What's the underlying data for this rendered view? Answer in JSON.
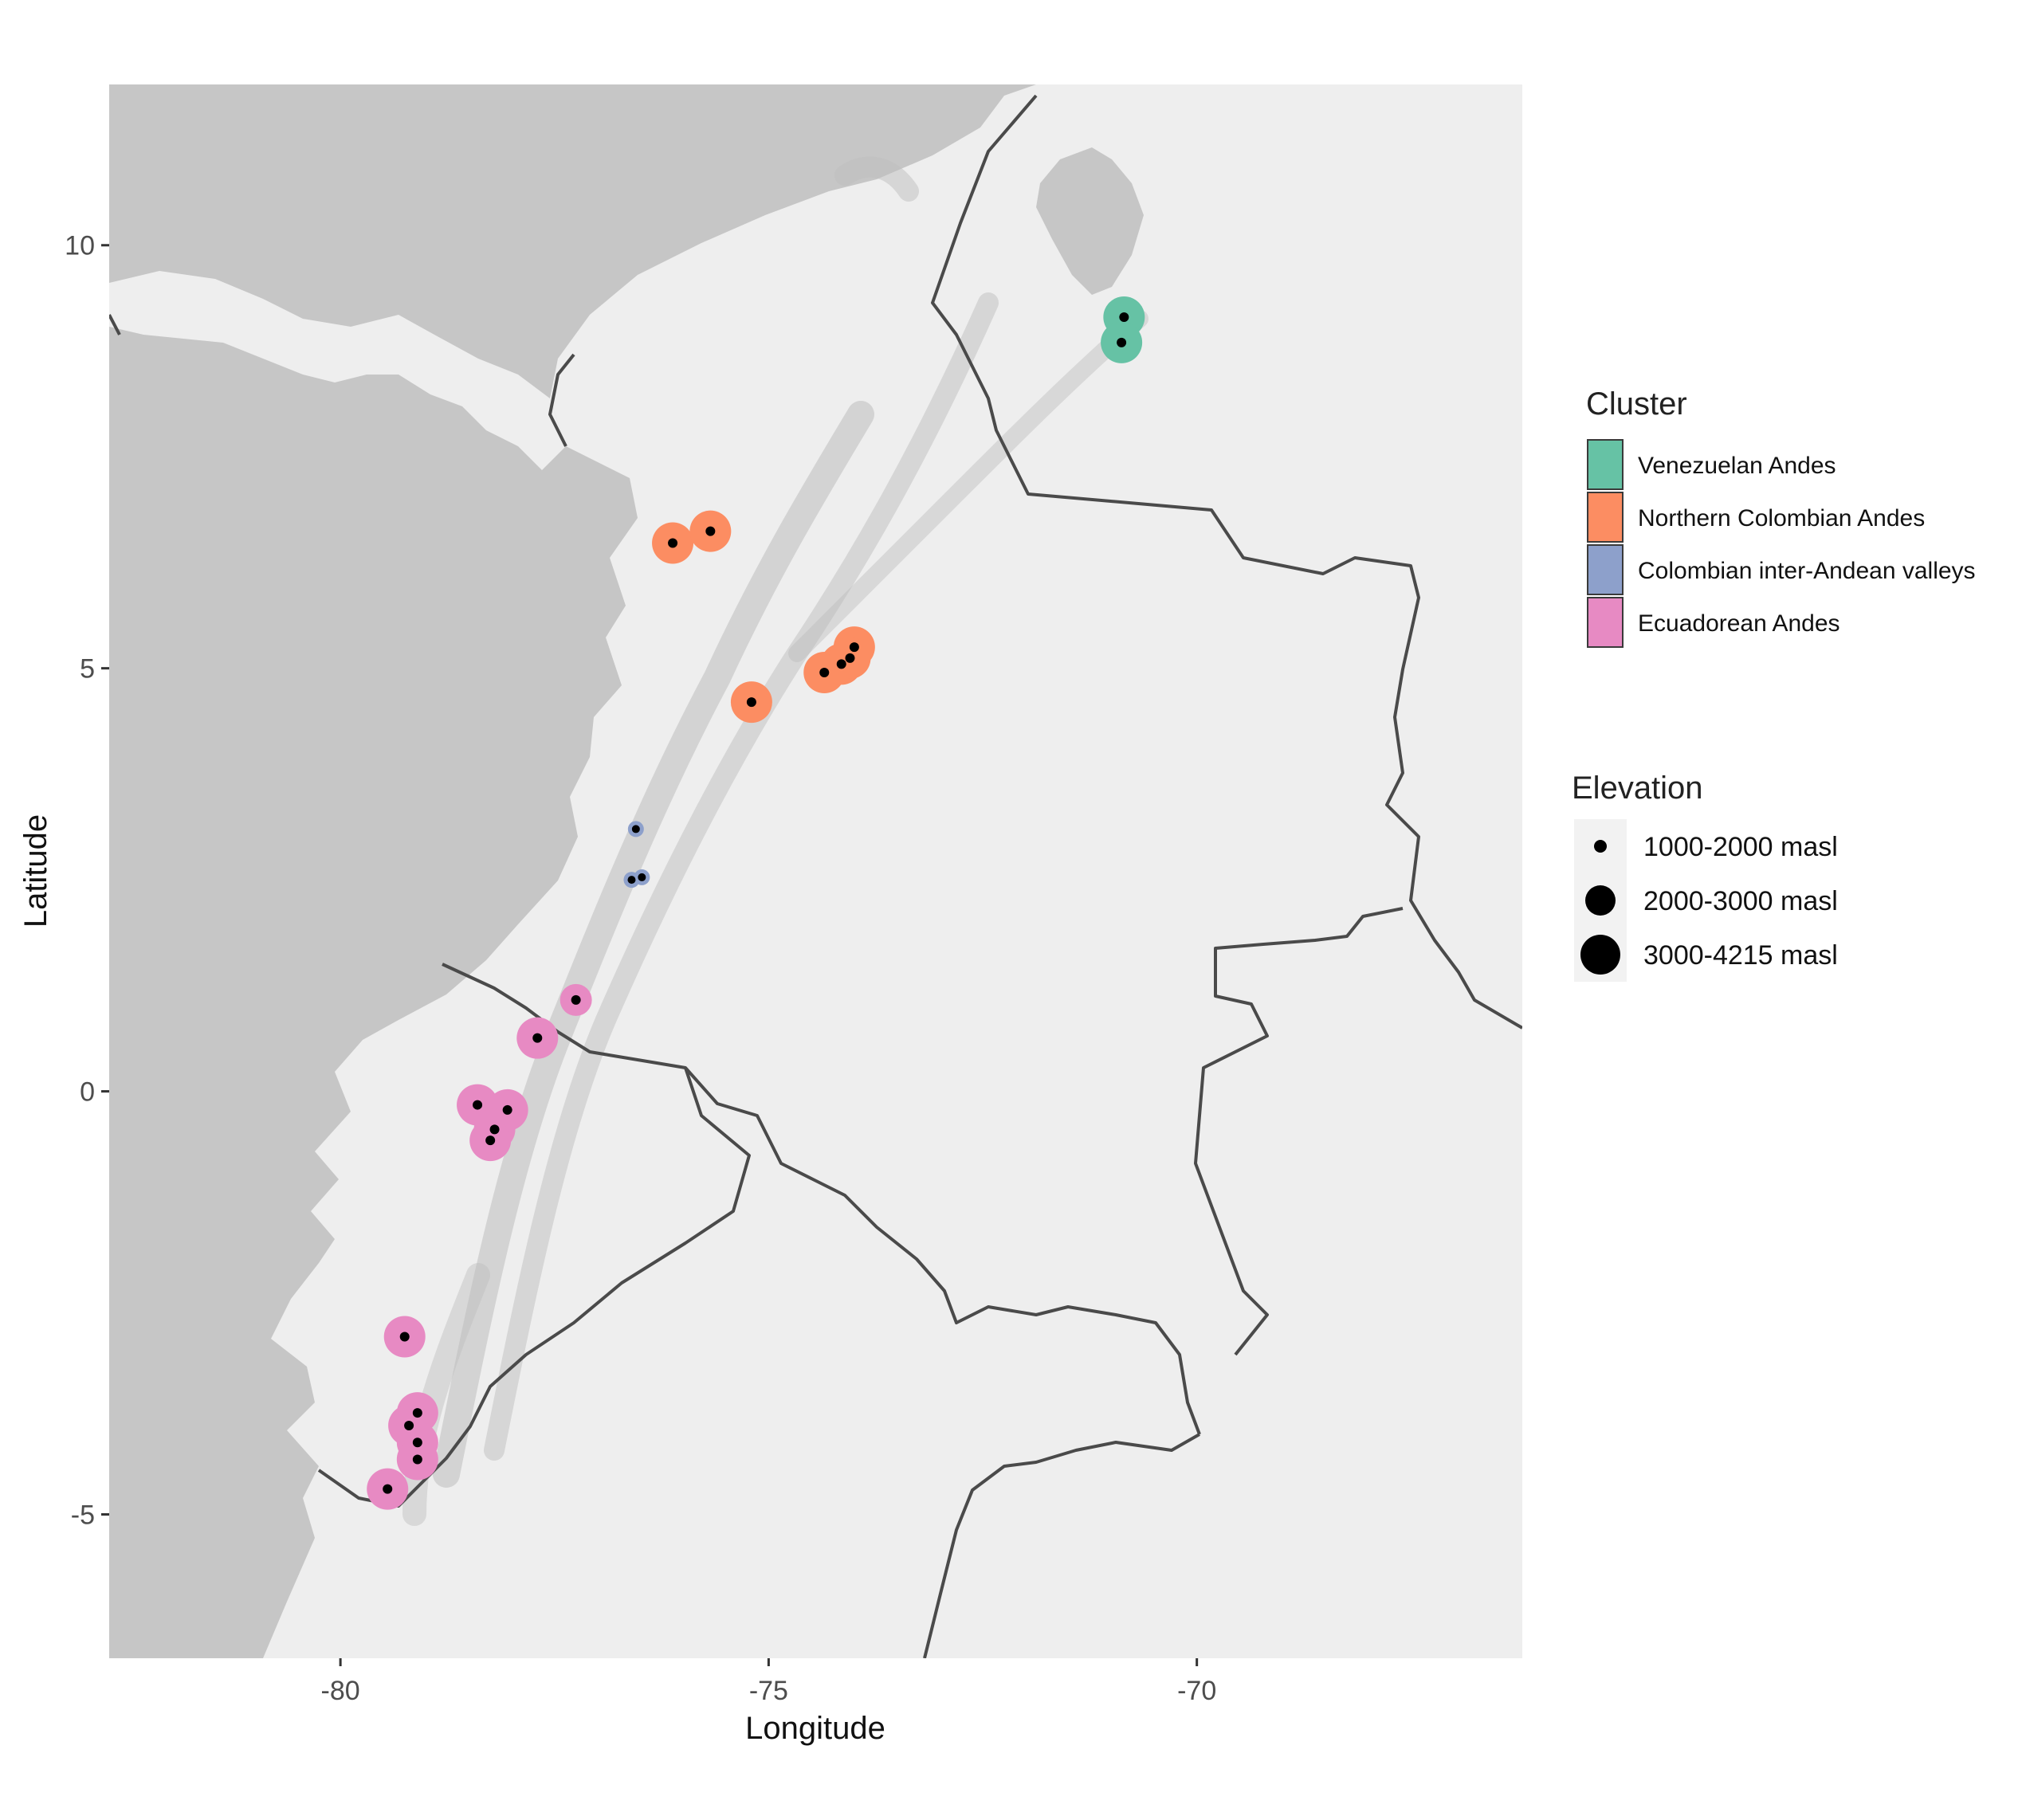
{
  "map": {
    "xlabel": "Longitude",
    "ylabel": "Latitude",
    "xlim": [
      -82.7,
      -66.2
    ],
    "ylim": [
      -6.7,
      11.9
    ],
    "x_ticks": [
      -80,
      -75,
      -70
    ],
    "y_ticks": [
      10,
      5,
      0,
      -5
    ],
    "x_tick_labels": [
      "-80",
      "-75",
      "-70"
    ],
    "y_tick_labels": [
      "10",
      "5",
      "0",
      "-5"
    ],
    "sea_color": "#c6c6c6",
    "land_color": "#eeeeee",
    "border_color": "#4a4a4a"
  },
  "legend": {
    "cluster": {
      "title": "Cluster",
      "items": [
        {
          "label": "Venezuelan Andes",
          "color": "#66c2a5"
        },
        {
          "label": "Northern Colombian Andes",
          "color": "#fc8d62"
        },
        {
          "label": "Colombian inter-Andean valleys",
          "color": "#8da0cb"
        },
        {
          "label": "Ecuadorean Andes",
          "color": "#e78ac3"
        }
      ]
    },
    "elevation": {
      "title": "Elevation",
      "items": [
        {
          "label": "1000-2000 masl",
          "size": 1
        },
        {
          "label": "2000-3000 masl",
          "size": 2
        },
        {
          "label": "3000-4215 masl",
          "size": 3
        }
      ]
    }
  },
  "chart_data": {
    "type": "scatter",
    "xlabel": "Longitude",
    "ylabel": "Latitude",
    "xlim": [
      -82.7,
      -66.2
    ],
    "ylim": [
      -6.7,
      11.9
    ],
    "series": [
      {
        "name": "Venezuelan Andes",
        "color": "#66c2a5",
        "points": [
          {
            "lon": -70.85,
            "lat": 9.15,
            "elev": 3
          },
          {
            "lon": -70.88,
            "lat": 8.85,
            "elev": 3
          }
        ]
      },
      {
        "name": "Northern Colombian Andes",
        "color": "#fc8d62",
        "points": [
          {
            "lon": -76.12,
            "lat": 6.48,
            "elev": 3
          },
          {
            "lon": -75.68,
            "lat": 6.62,
            "elev": 3
          },
          {
            "lon": -75.2,
            "lat": 4.6,
            "elev": 3
          },
          {
            "lon": -74.35,
            "lat": 4.95,
            "elev": 3
          },
          {
            "lon": -74.15,
            "lat": 5.05,
            "elev": 3
          },
          {
            "lon": -74.0,
            "lat": 5.25,
            "elev": 3
          },
          {
            "lon": -74.05,
            "lat": 5.12,
            "elev": 3
          }
        ]
      },
      {
        "name": "Colombian inter-Andean valleys",
        "color": "#8da0cb",
        "points": [
          {
            "lon": -76.55,
            "lat": 3.1,
            "elev": 1
          },
          {
            "lon": -76.6,
            "lat": 2.5,
            "elev": 1
          },
          {
            "lon": -76.48,
            "lat": 2.53,
            "elev": 1
          }
        ]
      },
      {
        "name": "Ecuadorean Andes",
        "color": "#e78ac3",
        "points": [
          {
            "lon": -77.25,
            "lat": 1.08,
            "elev": 2
          },
          {
            "lon": -77.7,
            "lat": 0.63,
            "elev": 3
          },
          {
            "lon": -78.4,
            "lat": -0.16,
            "elev": 3
          },
          {
            "lon": -78.05,
            "lat": -0.22,
            "elev": 3
          },
          {
            "lon": -78.2,
            "lat": -0.45,
            "elev": 3
          },
          {
            "lon": -78.25,
            "lat": -0.58,
            "elev": 3
          },
          {
            "lon": -79.25,
            "lat": -2.9,
            "elev": 3
          },
          {
            "lon": -79.1,
            "lat": -3.8,
            "elev": 3
          },
          {
            "lon": -79.2,
            "lat": -3.95,
            "elev": 3
          },
          {
            "lon": -79.1,
            "lat": -4.15,
            "elev": 3
          },
          {
            "lon": -79.1,
            "lat": -4.35,
            "elev": 3
          },
          {
            "lon": -79.45,
            "lat": -4.7,
            "elev": 3
          }
        ]
      }
    ]
  }
}
